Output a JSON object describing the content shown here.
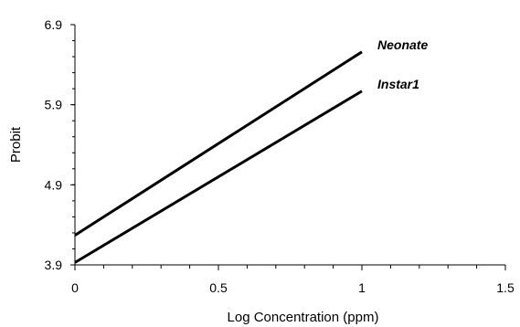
{
  "chart_data": {
    "type": "line",
    "xlabel": "Log Concentration (ppm)",
    "ylabel": "Probit",
    "xlim": [
      0,
      1.5
    ],
    "ylim": [
      3.9,
      6.9
    ],
    "x_ticks": [
      "0",
      "0.5",
      "1",
      "1.5"
    ],
    "y_ticks": [
      "3.9",
      "4.9",
      "5.9",
      "6.9"
    ],
    "grid": false,
    "series": [
      {
        "name": "Neonate",
        "x": [
          0,
          1
        ],
        "y": [
          4.27,
          6.56
        ],
        "color": "#000000"
      },
      {
        "name": "Instar1",
        "x": [
          0,
          1
        ],
        "y": [
          3.93,
          6.07
        ],
        "color": "#000000"
      }
    ]
  }
}
